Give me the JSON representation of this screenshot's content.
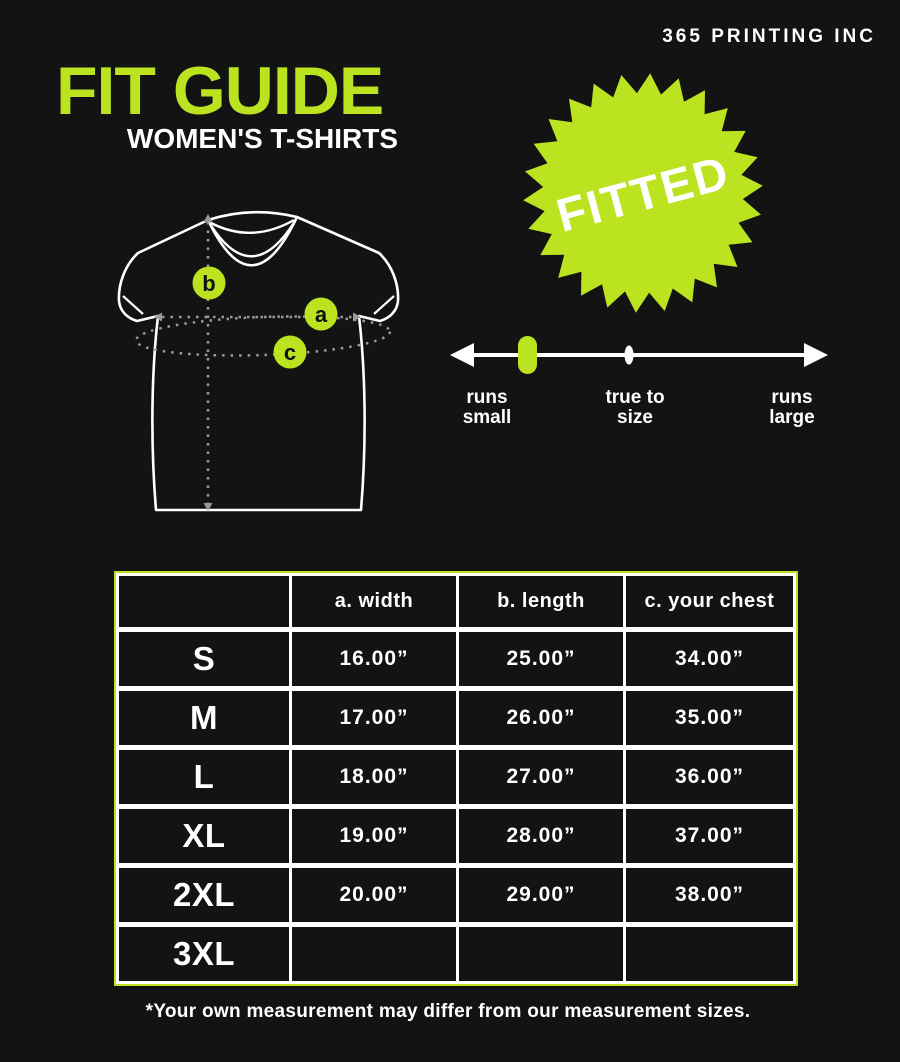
{
  "colors": {
    "accent_green": "#bce320",
    "background": "#131313",
    "text": "#ffffff",
    "dotted_line": "#9a9a9a"
  },
  "brand": "365 PRINTING INC",
  "title": "FIT GUIDE",
  "subtitle": "WOMEN'S T-SHIRTS",
  "badge": {
    "label": "FITTED"
  },
  "diagram": {
    "markers": [
      {
        "letter": "b",
        "measures": "length"
      },
      {
        "letter": "a",
        "measures": "width"
      },
      {
        "letter": "c",
        "measures": "your chest"
      }
    ]
  },
  "fit_scale": {
    "left_label": "runs\nsmall",
    "center_label": "true to\nsize",
    "right_label": "runs\nlarge",
    "marker_position": "runs small"
  },
  "size_table": {
    "headers": [
      "",
      "a. width",
      "b. length",
      "c. your chest"
    ],
    "rows": [
      {
        "size": "S",
        "width": "16.00”",
        "length": "25.00”",
        "chest": "34.00”"
      },
      {
        "size": "M",
        "width": "17.00”",
        "length": "26.00”",
        "chest": "35.00”"
      },
      {
        "size": "L",
        "width": "18.00”",
        "length": "27.00”",
        "chest": "36.00”"
      },
      {
        "size": "XL",
        "width": "19.00”",
        "length": "28.00”",
        "chest": "37.00”"
      },
      {
        "size": "2XL",
        "width": "20.00”",
        "length": "29.00”",
        "chest": "38.00”"
      },
      {
        "size": "3XL",
        "width": "",
        "length": "",
        "chest": ""
      }
    ]
  },
  "footnote": "*Your own measurement may differ from our measurement sizes."
}
